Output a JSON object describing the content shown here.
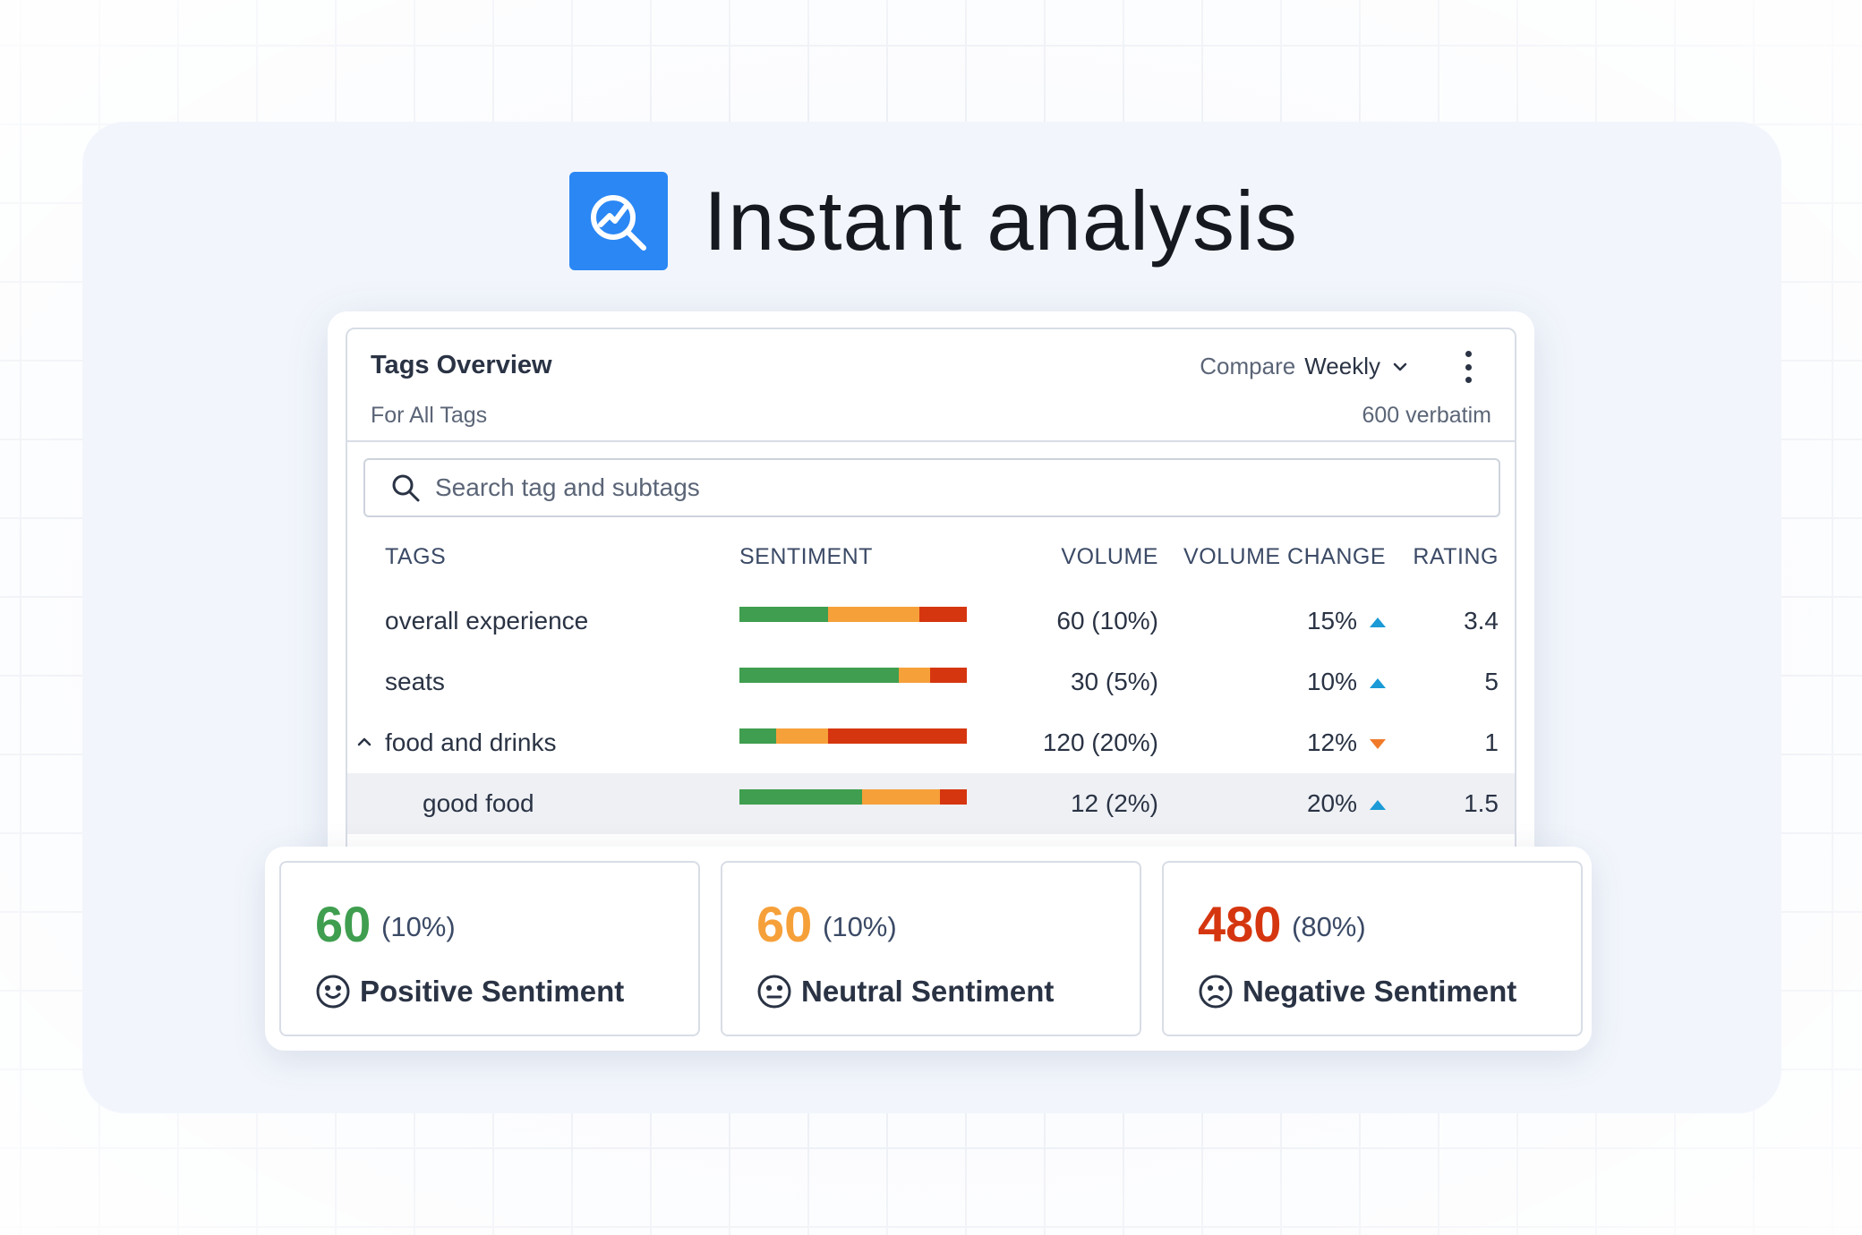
{
  "hero": {
    "title": "Instant analysis",
    "logo_icon": "analysis-search-icon",
    "logo_color": "#2b87f4"
  },
  "panel": {
    "title": "Tags Overview",
    "subtitle": "For All Tags",
    "compare_label": "Compare",
    "compare_value": "Weekly",
    "verbatim": "600 verbatim",
    "search_placeholder": "Search tag and subtags"
  },
  "table": {
    "headers": {
      "tags": "TAGS",
      "sentiment": "SENTIMENT",
      "volume": "VOLUME",
      "volume_change": "VOLUME CHANGE",
      "rating": "RATING"
    },
    "rows": [
      {
        "name": "overall experience",
        "sentiment": [
          0.39,
          0.4,
          0.21
        ],
        "volume": "60 (10%)",
        "change": "15%",
        "trend": "up",
        "rating": "3.4"
      },
      {
        "name": "seats",
        "sentiment": [
          0.7,
          0.14,
          0.16
        ],
        "volume": "30 (5%)",
        "change": "10%",
        "trend": "up",
        "rating": "5"
      },
      {
        "name": "food and drinks",
        "sentiment": [
          0.16,
          0.23,
          0.61
        ],
        "volume": "120 (20%)",
        "change": "12%",
        "trend": "down",
        "rating": "1",
        "expanded": true
      },
      {
        "name": "good food",
        "sentiment": [
          0.54,
          0.34,
          0.12
        ],
        "volume": "12 (2%)",
        "change": "20%",
        "trend": "up",
        "rating": "1.5",
        "subtag": true
      }
    ]
  },
  "colors": {
    "positive": "#3f9e4f",
    "neutral": "#f6a03a",
    "negative": "#d5360f",
    "trend_up": "#1a9ad6",
    "trend_down": "#f07a2a"
  },
  "cards": [
    {
      "value": "60",
      "pct": "(10%)",
      "label": "Positive Sentiment",
      "color": "#3f9e4f",
      "icon": "smile-face-icon"
    },
    {
      "value": "60",
      "pct": "(10%)",
      "label": "Neutral Sentiment",
      "color": "#f6a03a",
      "icon": "neutral-face-icon"
    },
    {
      "value": "480",
      "pct": "(80%)",
      "label": "Negative Sentiment",
      "color": "#d5360f",
      "icon": "sad-face-icon"
    }
  ]
}
